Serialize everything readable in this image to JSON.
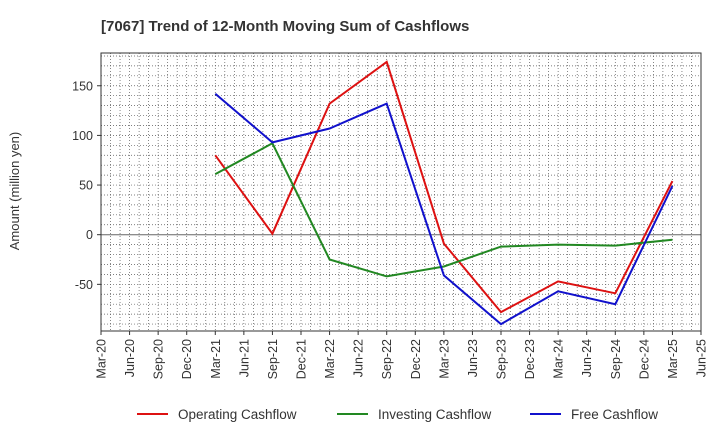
{
  "chart_data": {
    "type": "line",
    "title": "[7067]  Trend of 12-Month Moving Sum of Cashflows",
    "xlabel": "",
    "ylabel": "Amount (million yen)",
    "categories": [
      "Mar-20",
      "Jun-20",
      "Sep-20",
      "Dec-20",
      "Mar-21",
      "Jun-21",
      "Sep-21",
      "Dec-21",
      "Mar-22",
      "Jun-22",
      "Sep-22",
      "Dec-22",
      "Mar-23",
      "Jun-23",
      "Sep-23",
      "Dec-23",
      "Mar-24",
      "Jun-24",
      "Sep-24",
      "Dec-24",
      "Mar-25",
      "Jun-25"
    ],
    "y_ticks": [
      150,
      100,
      50,
      0,
      -50
    ],
    "ylim": [
      -97,
      183
    ],
    "grid": true,
    "legend_position": "bottom",
    "series": [
      {
        "name": "Operating Cashflow",
        "color": "#dd1111",
        "values": [
          null,
          null,
          null,
          null,
          80,
          null,
          1,
          null,
          132,
          null,
          174,
          null,
          -9,
          null,
          -78,
          null,
          -47,
          null,
          -59,
          null,
          54,
          null
        ]
      },
      {
        "name": "Investing Cashflow",
        "color": "#228822",
        "values": [
          null,
          null,
          null,
          null,
          61,
          null,
          92,
          null,
          -25,
          null,
          -42,
          null,
          -32,
          null,
          -12,
          null,
          -10,
          null,
          -11,
          null,
          -5,
          null
        ]
      },
      {
        "name": "Free Cashflow",
        "color": "#1111cc",
        "values": [
          null,
          null,
          null,
          null,
          142,
          null,
          93,
          null,
          107,
          null,
          132,
          null,
          -41,
          null,
          -90,
          null,
          -57,
          null,
          -70,
          null,
          49,
          null
        ]
      }
    ]
  }
}
